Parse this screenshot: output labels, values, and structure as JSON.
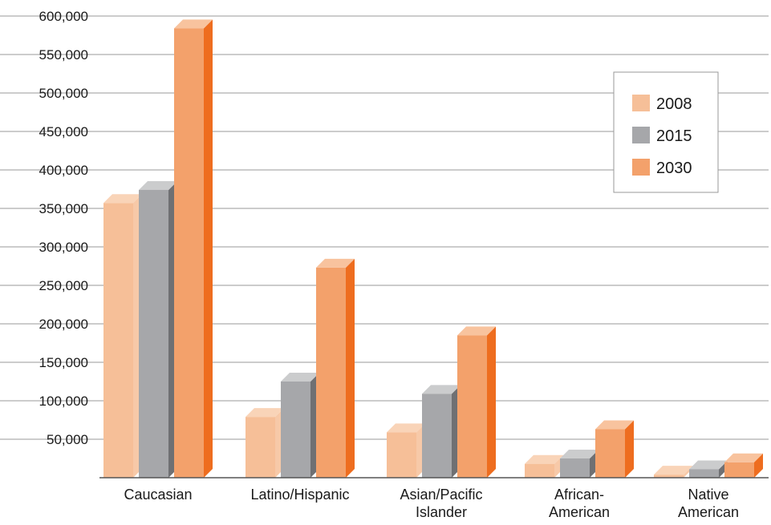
{
  "chart_data": {
    "type": "bar",
    "categories": [
      [
        "Caucasian"
      ],
      [
        "Latino/Hispanic"
      ],
      [
        "Asian/Pacific",
        "Islander"
      ],
      [
        "African-",
        "American"
      ],
      [
        "Native",
        "American"
      ]
    ],
    "series": [
      {
        "name": "2008",
        "values": [
          357000,
          79000,
          59000,
          18000,
          4000
        ],
        "color": "#f6bf98",
        "top_color": "#f9d4b8",
        "side_color": "#f7c9a8"
      },
      {
        "name": "2015",
        "values": [
          374000,
          125000,
          109000,
          25000,
          11000
        ],
        "color": "#a6a7aa",
        "top_color": "#cbcccd",
        "side_color": "#6f7073"
      },
      {
        "name": "2030",
        "values": [
          584000,
          273000,
          185000,
          63000,
          20000
        ],
        "color": "#f3a16b",
        "top_color": "#f8c39e",
        "side_color": "#ee6d1f"
      }
    ],
    "yticks": [
      "50,000",
      "100,000",
      "150,000",
      "200,000",
      "250,000",
      "300,000",
      "350,000",
      "400,000",
      "450,000",
      "500,000",
      "550,000",
      "600,000"
    ],
    "ylim": [
      0,
      600000
    ],
    "grid": true,
    "legend_position": "top-right",
    "title": "",
    "xlabel": "",
    "ylabel": ""
  }
}
